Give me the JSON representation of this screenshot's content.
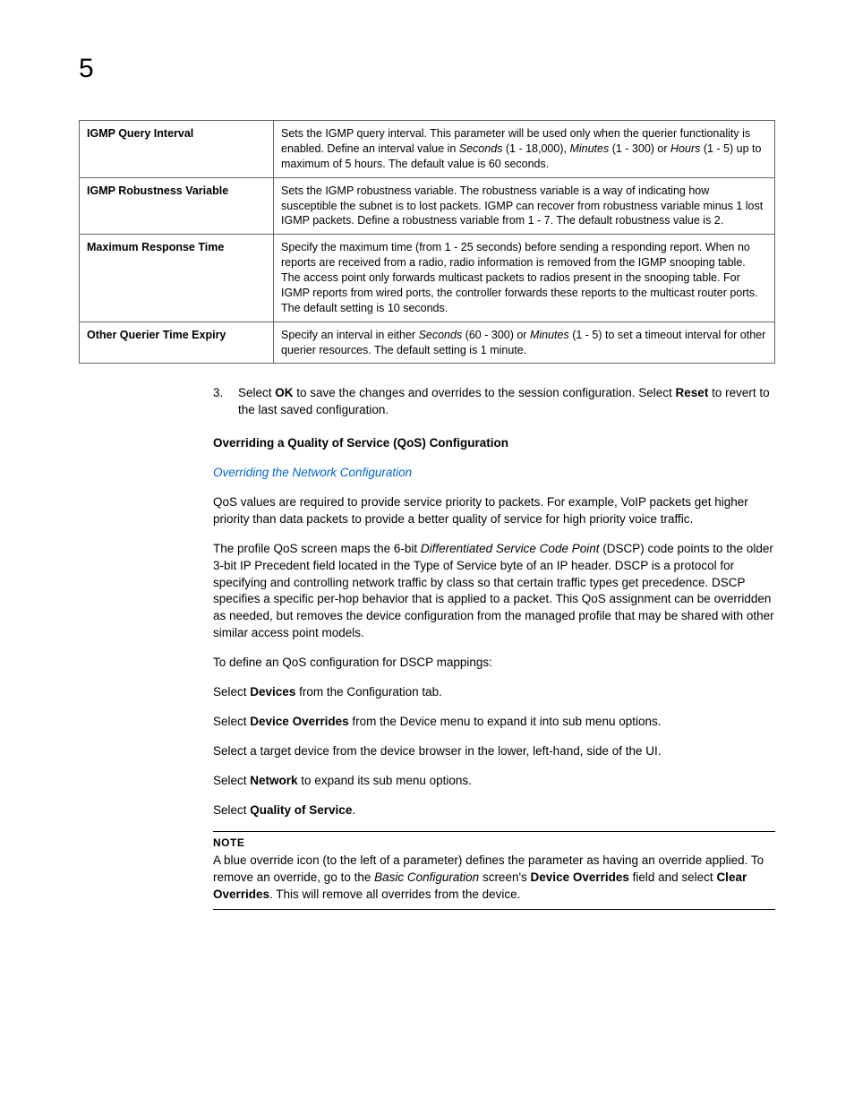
{
  "page": {
    "chapter_number": "5"
  },
  "table": {
    "rows": [
      {
        "label": "IGMP Query Interval",
        "desc_pre": "Sets the IGMP query interval. This parameter will be used only when the querier functionality is enabled. Define an interval value in ",
        "desc_i1": "Seconds",
        "desc_mid1": " (1 - 18,000), ",
        "desc_i2": "Minutes",
        "desc_mid2": " (1 - 300) or ",
        "desc_i3": "Hours",
        "desc_post": " (1 - 5) up to maximum of 5 hours. The default value is 60 seconds."
      },
      {
        "label": "IGMP Robustness Variable",
        "desc_plain": "Sets the IGMP robustness variable. The robustness variable is a way of indicating how susceptible the subnet is to lost packets. IGMP can recover from robustness variable minus 1 lost IGMP packets. Define a robustness variable from 1 - 7. The default robustness value is 2."
      },
      {
        "label": "Maximum Response Time",
        "desc_plain": "Specify the maximum time (from 1 - 25 seconds) before sending a responding report. When no reports are received from a radio, radio information is removed from the IGMP snooping table. The access point only forwards multicast packets to radios present in the snooping table. For IGMP reports from wired ports, the controller forwards these reports to the multicast router ports. The default setting is 10 seconds."
      },
      {
        "label": "Other Querier Time Expiry",
        "desc_pre": "Specify an interval in either ",
        "desc_i1": "Seconds",
        "desc_mid1": " (60 - 300) or ",
        "desc_i2": "Minutes",
        "desc_post": " (1 - 5) to set a timeout interval for other querier resources. The default setting is 1 minute."
      }
    ]
  },
  "body": {
    "step3_num": "3.",
    "step3_pre": "Select ",
    "step3_ok": "OK",
    "step3_mid": " to save the changes and overrides to the session configuration. Select ",
    "step3_reset": "Reset",
    "step3_post": " to revert to the last saved configuration.",
    "section_title": "Overriding a Quality of Service (QoS) Configuration",
    "link_text": "Overriding the Network Configuration",
    "para1": "QoS values are required to provide service priority to packets. For example, VoIP packets get higher priority than data packets to provide a better quality of service for high priority voice traffic.",
    "para2_pre": "The profile QoS screen maps the 6-bit ",
    "para2_i": "Differentiated Service Code Point",
    "para2_post": " (DSCP) code points to the older 3-bit IP Precedent field located in the Type of Service byte of an IP header. DSCP is a protocol for specifying and controlling network traffic by class so that certain traffic types get precedence. DSCP specifies a specific per-hop behavior that is applied to a packet. This QoS assignment can be overridden as needed, but removes the device configuration from the managed profile that may be shared with other similar access point models.",
    "para3": "To define an QoS configuration for DSCP mappings:",
    "step_a_pre": "Select ",
    "step_a_b": "Devices",
    "step_a_post": " from the Configuration tab.",
    "step_b_pre": "Select ",
    "step_b_b": "Device Overrides",
    "step_b_post": " from the Device menu to expand it into sub menu options.",
    "step_c": "Select a target device from the device browser in the lower, left-hand, side of the UI.",
    "step_d_pre": "Select ",
    "step_d_b": "Network",
    "step_d_post": " to expand its sub menu options.",
    "step_e_pre": "Select ",
    "step_e_b": "Quality of Service",
    "step_e_post": ".",
    "note_title": "NOTE",
    "note_pre": "A blue override icon (to the left of a parameter) defines the parameter as having an override applied. To remove an override, go to the ",
    "note_i": "Basic Configuration",
    "note_mid1": " screen's ",
    "note_b1": "Device Overrides",
    "note_mid2": " field and select ",
    "note_b2": "Clear Overrides",
    "note_post": ". This will remove all overrides from the device."
  }
}
